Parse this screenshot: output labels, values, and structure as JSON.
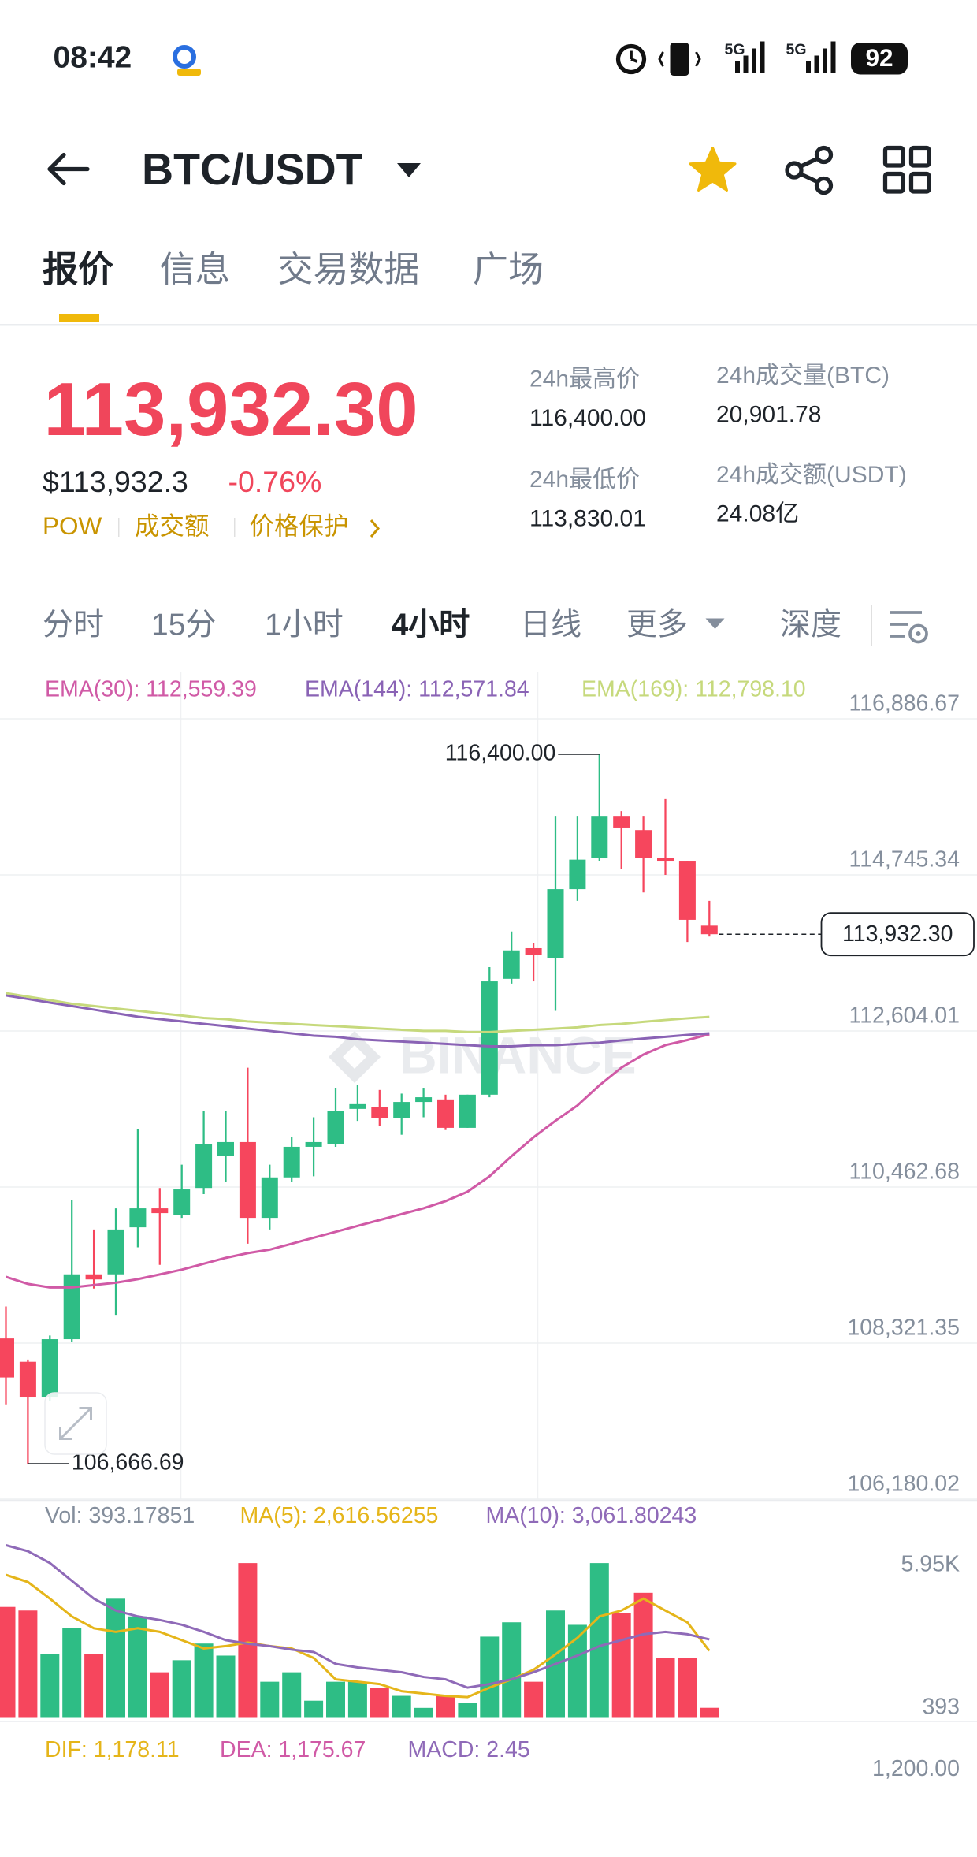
{
  "status_bar": {
    "time": "08:42",
    "network": [
      "5G",
      "5G"
    ],
    "battery": "92"
  },
  "header": {
    "pair": "BTC/USDT"
  },
  "tabs": [
    "报价",
    "信息",
    "交易数据",
    "广场"
  ],
  "price": {
    "last": "113,932.30",
    "usd": "$113,932.3",
    "change": "-0.76%",
    "tags": [
      "POW",
      "成交额",
      "价格保护"
    ]
  },
  "stats": [
    {
      "label": "24h最高价",
      "value": "116,400.00"
    },
    {
      "label": "24h最低价",
      "value": "113,830.01"
    },
    {
      "label": "24h成交量(BTC)",
      "value": "20,901.78"
    },
    {
      "label": "24h成交额(USDT)",
      "value": "24.08亿"
    }
  ],
  "intervals": [
    "分时",
    "15分",
    "1小时",
    "4小时",
    "日线",
    "更多",
    "深度"
  ],
  "watermark": "BINANCE",
  "chart_data": [
    {
      "type": "candlestick",
      "open": [
        108385,
        108065,
        107575,
        108375,
        109265,
        109265,
        109910,
        110170,
        110075,
        110450,
        110885,
        111080,
        110040,
        110595,
        111015,
        111050,
        111535,
        111565,
        111405,
        111630,
        111665,
        111275,
        111730,
        113320,
        113740,
        113610,
        114550,
        114975,
        115555,
        115360,
        114975,
        114940,
        114050
      ],
      "high": [
        108825,
        108095,
        108425,
        110285,
        109880,
        110170,
        111260,
        110450,
        110770,
        111505,
        111505,
        112100,
        110770,
        111145,
        111420,
        111825,
        111860,
        111795,
        111745,
        111825,
        111730,
        111730,
        113480,
        113970,
        113805,
        115555,
        115555,
        116400,
        115620,
        115555,
        115785,
        114940,
        114390
      ],
      "low": [
        107480,
        106666.69,
        107530,
        108340,
        109070,
        108710,
        109635,
        109395,
        110040,
        110365,
        110530,
        109685,
        109880,
        110530,
        110610,
        111015,
        111370,
        111305,
        111180,
        111420,
        111245,
        111275,
        111695,
        113255,
        113285,
        112880,
        114390,
        114940,
        114825,
        114505,
        114745,
        113825,
        113900
      ],
      "close": [
        107850,
        107575,
        108375,
        109265,
        109195,
        109880,
        110170,
        110105,
        110430,
        111050,
        111080,
        110040,
        110595,
        111015,
        111080,
        111505,
        111600,
        111405,
        111630,
        111695,
        111275,
        111730,
        113285,
        113710,
        113645,
        114550,
        114955,
        115555,
        115395,
        114975,
        114940,
        114130,
        113932.3
      ],
      "up_color": "#2ebd85",
      "down_color": "#f6465d",
      "ylim": [
        106180.02,
        117536
      ],
      "yticks": [
        {
          "value": 116886.67,
          "label": "116,886.67"
        },
        {
          "value": 114745.34,
          "label": "114,745.34"
        },
        {
          "value": 112604.01,
          "label": "112,604.01"
        },
        {
          "value": 110462.68,
          "label": "110,462.68"
        },
        {
          "value": 108321.35,
          "label": "108,321.35"
        },
        {
          "value": 106180.02,
          "label": "106,180.02"
        }
      ],
      "grid": true,
      "series": [
        {
          "name": "EMA(30): 112,559.39",
          "color": "#d05aa6",
          "values": [
            109231,
            109134,
            109085,
            109085,
            109118,
            109150,
            109199,
            109264,
            109329,
            109410,
            109491,
            109556,
            109604,
            109685,
            109767,
            109848,
            109929,
            110010,
            110091,
            110172,
            110269,
            110399,
            110610,
            110886,
            111145,
            111372,
            111583,
            111859,
            112102,
            112280,
            112410,
            112480,
            112559.39
          ]
        },
        {
          "name": "EMA(144): 112,571.84",
          "color": "#8a63b5",
          "values": [
            113092,
            113043,
            112994,
            112946,
            112897,
            112848,
            112800,
            112767,
            112735,
            112702,
            112670,
            112637,
            112605,
            112572,
            112540,
            112524,
            112491,
            112475,
            112459,
            112443,
            112427,
            112410,
            112394,
            112394,
            112410,
            112410,
            112427,
            112443,
            112475,
            112500,
            112525,
            112550,
            112571.84
          ]
        },
        {
          "name": "EMA(169): 112,798.10",
          "color": "#c6d97c",
          "values": [
            113124,
            113075,
            113027,
            112978,
            112946,
            112913,
            112881,
            112848,
            112816,
            112783,
            112767,
            112735,
            112718,
            112702,
            112686,
            112670,
            112654,
            112637,
            112621,
            112605,
            112605,
            112589,
            112589,
            112605,
            112621,
            112637,
            112654,
            112686,
            112702,
            112730,
            112755,
            112778,
            112798.1
          ]
        }
      ],
      "high_label": "116,400.00",
      "low_label": "106,666.69",
      "last_label": "113,932.30"
    },
    {
      "type": "bar",
      "name": "Vol: 393.17851",
      "values": [
        4330,
        4190,
        2480,
        3500,
        2480,
        4650,
        3960,
        1780,
        2250,
        2900,
        2430,
        6040,
        1410,
        1780,
        670,
        1410,
        1410,
        1180,
        860,
        390,
        860,
        580,
        3170,
        3730,
        1410,
        4190,
        3630,
        6040,
        4100,
        4880,
        2340,
        2340,
        393.17851
      ],
      "ylim": [
        0,
        8350
      ],
      "yticks": [
        {
          "value": 5950,
          "label": "5.95K"
        },
        393
      ],
      "grid": false,
      "series": [
        {
          "name": "MA(5): 2,616.56255",
          "color": "#e5b51a",
          "values": [
            5579,
            5301,
            4653,
            3959,
            3496,
            3357,
            3496,
            3357,
            3033,
            2709,
            2801,
            2940,
            2801,
            2709,
            2338,
            1505,
            1412,
            1320,
            1042,
            949,
            857,
            810,
            1181,
            1505,
            1875,
            2477,
            3125,
            3959,
            4190,
            4653,
            4190,
            3727,
            2616.56255
          ]
        },
        {
          "name": "MA(10): 3,061.80243",
          "color": "#8f6ab8",
          "values": [
            6737,
            6505,
            6042,
            5348,
            4653,
            4190,
            3959,
            3820,
            3635,
            3357,
            3033,
            2894,
            2801,
            2662,
            2570,
            2107,
            1968,
            1875,
            1783,
            1597,
            1505,
            1181,
            1320,
            1505,
            1783,
            2107,
            2431,
            2801,
            3033,
            3264,
            3357,
            3264,
            3061.80243
          ]
        }
      ]
    }
  ],
  "macd": {
    "labels": [
      "DIF: 1,178.11",
      "DEA: 1,175.67",
      "MACD: 2.45"
    ],
    "tick": "1,200.00"
  }
}
